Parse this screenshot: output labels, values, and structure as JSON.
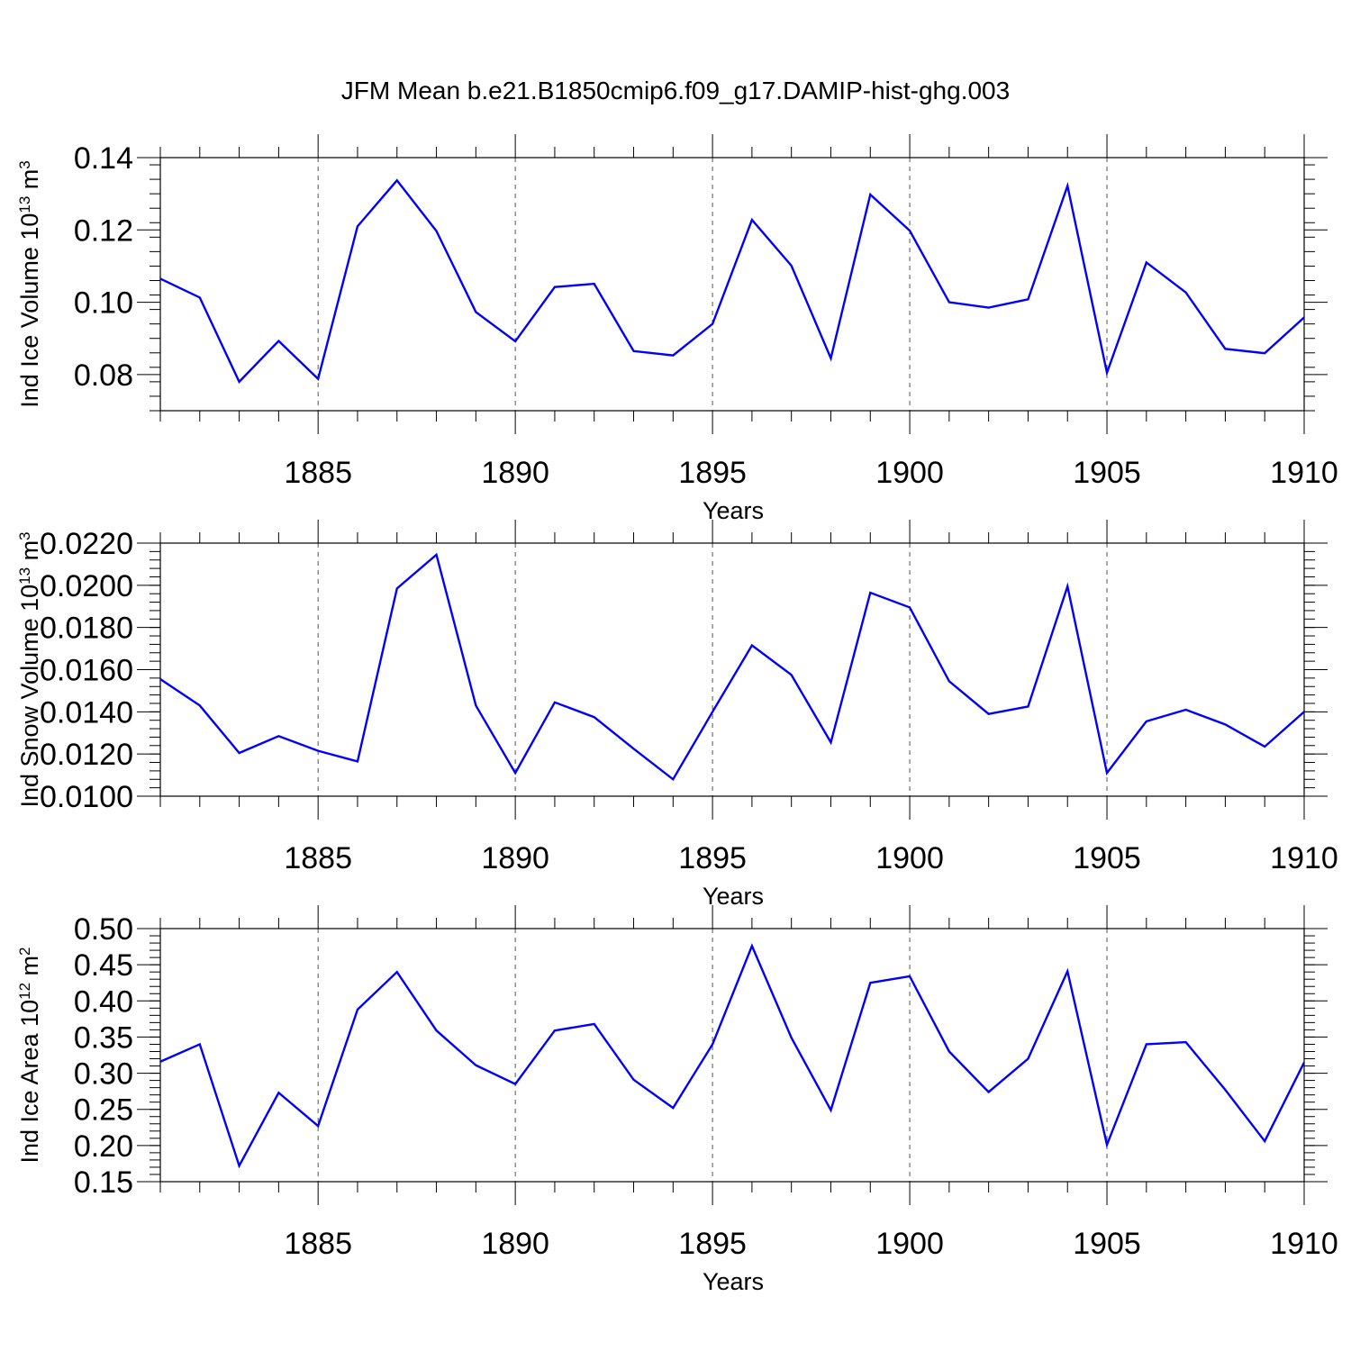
{
  "title": "JFM Mean b.e21.B1850cmip6.f09_g17.DAMIP-hist-ghg.003",
  "chart_data": [
    {
      "type": "line",
      "title": "",
      "xlabel": "Years",
      "ylabel": "Ind Ice Volume 10",
      "ylabel_exp": "13",
      "ylabel_unit": " m",
      "ylabel_unit_exp": "3",
      "xlim": [
        1881,
        1910
      ],
      "ylim": [
        0.07,
        0.14
      ],
      "xticks": [
        1885,
        1890,
        1895,
        1900,
        1905,
        1910
      ],
      "xtick_labels": [
        "1885",
        "1890",
        "1895",
        "1900",
        "1905",
        "1910"
      ],
      "yticks": [
        0.08,
        0.1,
        0.12,
        0.14
      ],
      "ytick_labels": [
        "0.08",
        "0.10",
        "0.12",
        "0.14"
      ],
      "grid": "vertical dashed at major x ticks",
      "series": [
        {
          "name": "Ind Ice Volume",
          "color": "#0000ff",
          "x": [
            1881,
            1882,
            1883,
            1884,
            1885,
            1886,
            1887,
            1888,
            1889,
            1890,
            1891,
            1892,
            1893,
            1894,
            1895,
            1896,
            1897,
            1898,
            1899,
            1900,
            1901,
            1902,
            1903,
            1904,
            1905,
            1906,
            1907,
            1908,
            1909,
            1910
          ],
          "values": [
            0.1065,
            0.1013,
            0.078,
            0.0893,
            0.0788,
            0.121,
            0.1337,
            0.1197,
            0.0973,
            0.0892,
            0.1042,
            0.1051,
            0.0865,
            0.0853,
            0.094,
            0.1228,
            0.1101,
            0.0845,
            0.1298,
            0.1198,
            0.1,
            0.0985,
            0.1008,
            0.1322,
            0.0805,
            0.111,
            0.1027,
            0.0871,
            0.0859,
            0.0958
          ]
        }
      ]
    },
    {
      "type": "line",
      "title": "",
      "xlabel": "Years",
      "ylabel": "Ind Snow Volume 10",
      "ylabel_exp": "13",
      "ylabel_unit": " m",
      "ylabel_unit_exp": "3",
      "xlim": [
        1881,
        1910
      ],
      "ylim": [
        0.01,
        0.022
      ],
      "xticks": [
        1885,
        1890,
        1895,
        1900,
        1905,
        1910
      ],
      "xtick_labels": [
        "1885",
        "1890",
        "1895",
        "1900",
        "1905",
        "1910"
      ],
      "yticks": [
        0.01,
        0.012,
        0.014,
        0.016,
        0.018,
        0.02,
        0.022
      ],
      "ytick_labels": [
        "0.0100",
        "0.0120",
        "0.0140",
        "0.0160",
        "0.0180",
        "0.0200",
        "0.0220"
      ],
      "grid": "vertical dashed at major x ticks",
      "series": [
        {
          "name": "Ind Snow Volume",
          "color": "#0000ff",
          "x": [
            1881,
            1882,
            1883,
            1884,
            1885,
            1886,
            1887,
            1888,
            1889,
            1890,
            1891,
            1892,
            1893,
            1894,
            1895,
            1896,
            1897,
            1898,
            1899,
            1900,
            1901,
            1902,
            1903,
            1904,
            1905,
            1906,
            1907,
            1908,
            1909,
            1910
          ],
          "values": [
            0.01555,
            0.0143,
            0.01205,
            0.01285,
            0.01215,
            0.01165,
            0.01985,
            0.02145,
            0.0143,
            0.0111,
            0.01445,
            0.01375,
            0.01225,
            0.0108,
            0.014,
            0.01715,
            0.01575,
            0.01255,
            0.01965,
            0.01895,
            0.01545,
            0.0139,
            0.01425,
            0.01995,
            0.0111,
            0.01355,
            0.0141,
            0.0134,
            0.01235,
            0.014
          ]
        }
      ]
    },
    {
      "type": "line",
      "title": "",
      "xlabel": "Years",
      "ylabel": "Ind Ice Area 10",
      "ylabel_exp": "12",
      "ylabel_unit": " m",
      "ylabel_unit_exp": "2",
      "xlim": [
        1881,
        1910
      ],
      "ylim": [
        0.15,
        0.5
      ],
      "xticks": [
        1885,
        1890,
        1895,
        1900,
        1905,
        1910
      ],
      "xtick_labels": [
        "1885",
        "1890",
        "1895",
        "1900",
        "1905",
        "1910"
      ],
      "yticks": [
        0.15,
        0.2,
        0.25,
        0.3,
        0.35,
        0.4,
        0.45,
        0.5
      ],
      "ytick_labels": [
        "0.15",
        "0.20",
        "0.25",
        "0.30",
        "0.35",
        "0.40",
        "0.45",
        "0.50"
      ],
      "grid": "vertical dashed at major x ticks",
      "series": [
        {
          "name": "Ind Ice Area",
          "color": "#0000ff",
          "x": [
            1881,
            1882,
            1883,
            1884,
            1885,
            1886,
            1887,
            1888,
            1889,
            1890,
            1891,
            1892,
            1893,
            1894,
            1895,
            1896,
            1897,
            1898,
            1899,
            1900,
            1901,
            1902,
            1903,
            1904,
            1905,
            1906,
            1907,
            1908,
            1909,
            1910
          ],
          "values": [
            0.316,
            0.34,
            0.172,
            0.273,
            0.227,
            0.388,
            0.44,
            0.359,
            0.311,
            0.285,
            0.359,
            0.368,
            0.291,
            0.252,
            0.34,
            0.476,
            0.349,
            0.249,
            0.425,
            0.434,
            0.33,
            0.274,
            0.32,
            0.441,
            0.201,
            0.34,
            0.343,
            0.277,
            0.206,
            0.315
          ]
        }
      ]
    }
  ]
}
